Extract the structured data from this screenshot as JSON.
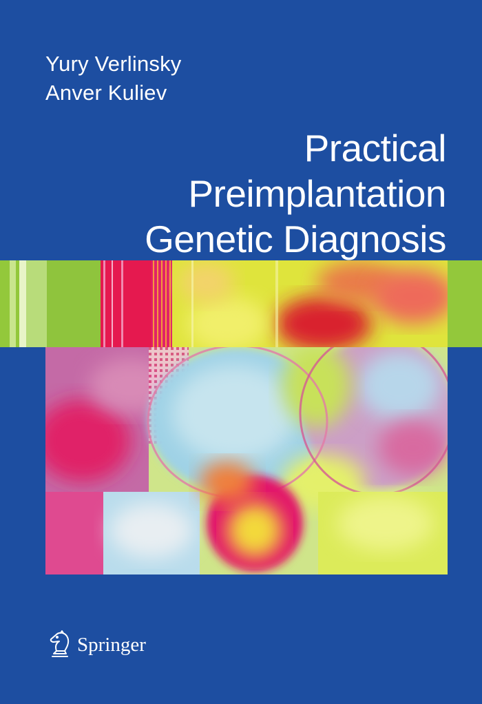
{
  "cover": {
    "authors": [
      "Yury Verlinsky",
      "Anver Kuliev"
    ],
    "title_lines": [
      "Practical",
      "Preimplantation",
      "Genetic Diagnosis"
    ],
    "publisher": "Springer"
  },
  "colors": {
    "background": "#1d4ea1",
    "text": "#ffffff",
    "band_green": "#95c83a",
    "art_magenta": "#e0357a",
    "art_pink": "#d96db1",
    "art_yellow": "#e8e23a",
    "art_light_blue": "#9fd2e6"
  },
  "icons": {
    "publisher_logo": "chess-knight-icon"
  }
}
